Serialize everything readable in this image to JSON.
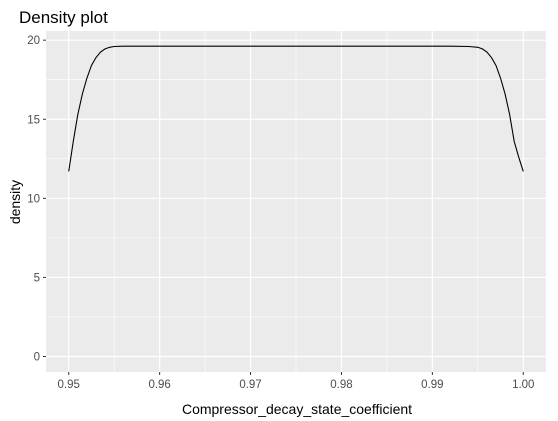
{
  "chart_data": {
    "type": "area",
    "title": "Density plot",
    "xlabel": "Compressor_decay_state_coefficient",
    "ylabel": "density",
    "xlim": [
      0.9475,
      1.0025
    ],
    "ylim": [
      -0.98,
      20.58
    ],
    "x_ticks": [
      0.95,
      0.96,
      0.97,
      0.98,
      0.99,
      1.0
    ],
    "x_tick_labels": [
      "0.95",
      "0.96",
      "0.97",
      "0.98",
      "0.99",
      "1.00"
    ],
    "y_ticks": [
      0,
      5,
      10,
      15,
      20
    ],
    "y_tick_labels": [
      "0",
      "5",
      "10",
      "15",
      "20"
    ],
    "grid": true,
    "legend": "none",
    "colors": {
      "panel": "#ebebeb",
      "grid": "#ffffff",
      "line": "#000000"
    },
    "series": [
      {
        "x": [
          0.95,
          0.9505,
          0.951,
          0.9515,
          0.952,
          0.9525,
          0.953,
          0.9535,
          0.954,
          0.9545,
          0.955,
          0.956,
          0.958,
          0.96,
          0.97,
          0.98,
          0.99,
          0.992,
          0.994,
          0.995,
          0.9955,
          0.996,
          0.9965,
          0.997,
          0.9975,
          0.998,
          0.9985,
          0.999,
          0.9995,
          1.0
        ],
        "y": [
          11.7,
          13.6,
          15.3,
          16.6,
          17.6,
          18.4,
          18.9,
          19.25,
          19.45,
          19.55,
          19.6,
          19.62,
          19.62,
          19.62,
          19.62,
          19.62,
          19.62,
          19.62,
          19.6,
          19.55,
          19.45,
          19.25,
          18.9,
          18.4,
          17.6,
          16.6,
          15.3,
          13.6,
          12.6,
          11.7
        ]
      }
    ]
  }
}
